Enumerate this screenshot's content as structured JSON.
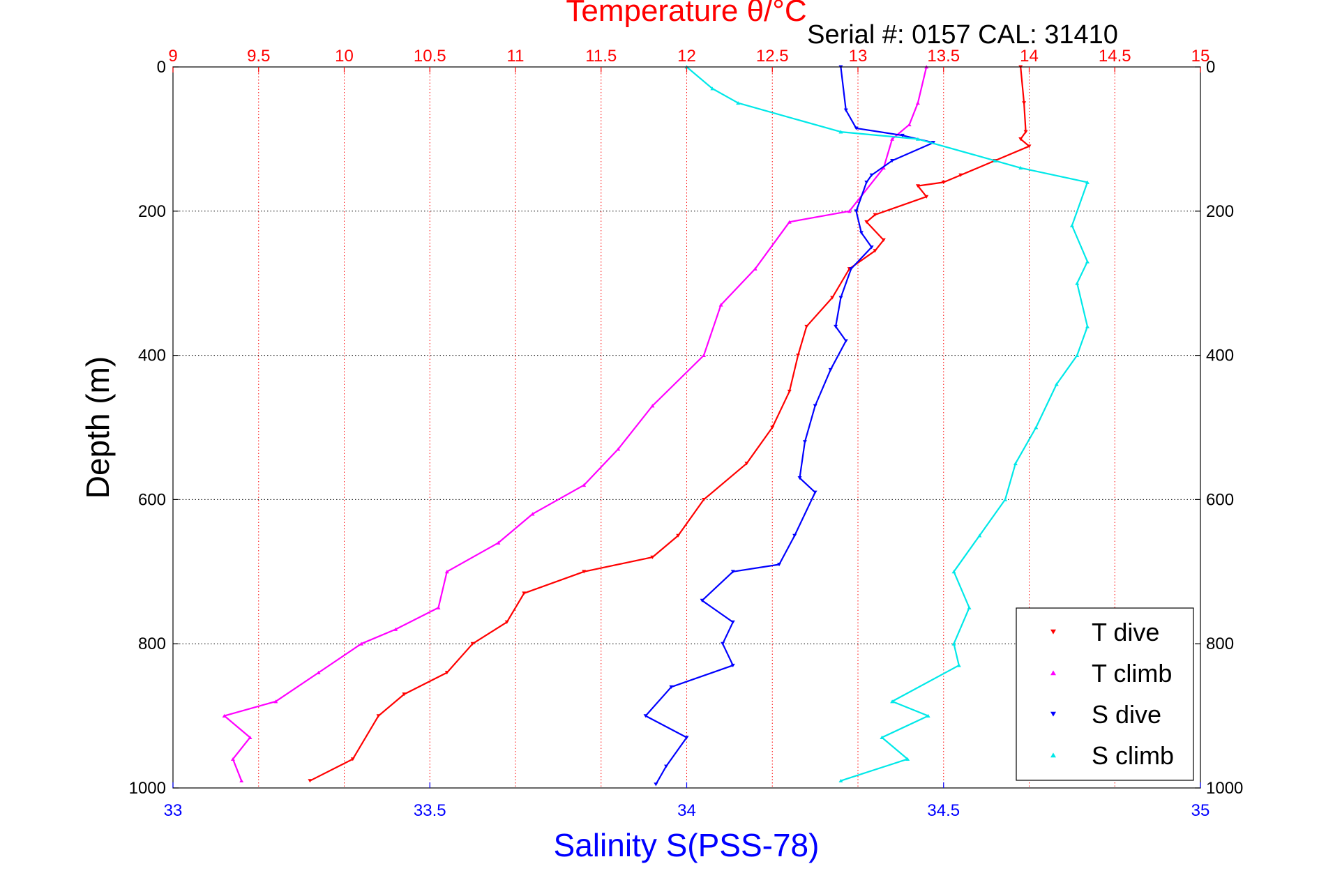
{
  "chart_data": {
    "type": "scatter",
    "title": "Temperature θ/°C",
    "subtitle": "Serial #: 0157  CAL: 31410",
    "xlabel": "Salinity S(PSS-78)",
    "ylabel": "Depth (m)",
    "temp_axis": {
      "label": "Temperature θ/°C",
      "range": [
        9,
        15
      ],
      "ticks": [
        9,
        9.5,
        10,
        10.5,
        11,
        11.5,
        12,
        12.5,
        13,
        13.5,
        14,
        14.5,
        15
      ],
      "tick_labels": [
        "9",
        "9.5",
        "10",
        "10.5",
        "11",
        "11.5",
        "12",
        "12.5",
        "13",
        "13.5",
        "14",
        "14.5",
        "15"
      ],
      "color": "#ff0000"
    },
    "salinity_axis": {
      "label": "Salinity S(PSS-78)",
      "range": [
        33,
        35
      ],
      "ticks": [
        33,
        33.5,
        34,
        34.5,
        35
      ],
      "tick_labels": [
        "33",
        "33.5",
        "34",
        "34.5",
        "35"
      ],
      "color": "#0000ff"
    },
    "depth_axis": {
      "label": "Depth (m)",
      "range": [
        0,
        1000
      ],
      "reversed": true,
      "ticks": [
        0,
        200,
        400,
        600,
        800,
        1000
      ],
      "tick_labels": [
        "0",
        "200",
        "400",
        "600",
        "800",
        "1000"
      ]
    },
    "grid": true,
    "legend": {
      "position": "bottom-right"
    },
    "series": [
      {
        "name": "T dive",
        "axis": "temperature",
        "color": "#ff0000",
        "marker": "triangle-down",
        "points": [
          [
            13.95,
            0
          ],
          [
            13.97,
            50
          ],
          [
            13.98,
            90
          ],
          [
            13.95,
            100
          ],
          [
            14.0,
            110
          ],
          [
            13.8,
            130
          ],
          [
            13.6,
            150
          ],
          [
            13.5,
            160
          ],
          [
            13.35,
            165
          ],
          [
            13.4,
            180
          ],
          [
            13.1,
            205
          ],
          [
            13.05,
            215
          ],
          [
            13.15,
            240
          ],
          [
            13.1,
            255
          ],
          [
            12.95,
            280
          ],
          [
            12.85,
            320
          ],
          [
            12.7,
            360
          ],
          [
            12.65,
            400
          ],
          [
            12.6,
            450
          ],
          [
            12.5,
            500
          ],
          [
            12.35,
            550
          ],
          [
            12.1,
            600
          ],
          [
            11.95,
            650
          ],
          [
            11.8,
            680
          ],
          [
            11.4,
            700
          ],
          [
            11.05,
            730
          ],
          [
            10.95,
            770
          ],
          [
            10.75,
            800
          ],
          [
            10.6,
            840
          ],
          [
            10.35,
            870
          ],
          [
            10.2,
            900
          ],
          [
            10.05,
            960
          ],
          [
            9.8,
            990
          ]
        ]
      },
      {
        "name": "T climb",
        "axis": "temperature",
        "color": "#ff00ff",
        "marker": "triangle-up",
        "points": [
          [
            13.4,
            0
          ],
          [
            13.35,
            50
          ],
          [
            13.3,
            80
          ],
          [
            13.2,
            100
          ],
          [
            13.15,
            140
          ],
          [
            12.95,
            200
          ],
          [
            12.6,
            215
          ],
          [
            12.4,
            280
          ],
          [
            12.2,
            330
          ],
          [
            12.1,
            400
          ],
          [
            11.8,
            470
          ],
          [
            11.6,
            530
          ],
          [
            11.4,
            580
          ],
          [
            11.1,
            620
          ],
          [
            10.9,
            660
          ],
          [
            10.6,
            700
          ],
          [
            10.55,
            750
          ],
          [
            10.3,
            780
          ],
          [
            10.1,
            800
          ],
          [
            9.85,
            840
          ],
          [
            9.6,
            880
          ],
          [
            9.3,
            900
          ],
          [
            9.45,
            930
          ],
          [
            9.35,
            960
          ],
          [
            9.4,
            990
          ]
        ]
      },
      {
        "name": "S dive",
        "axis": "salinity",
        "color": "#0000ff",
        "marker": "triangle-down",
        "points": [
          [
            34.3,
            0
          ],
          [
            34.31,
            60
          ],
          [
            34.33,
            85
          ],
          [
            34.42,
            95
          ],
          [
            34.48,
            105
          ],
          [
            34.4,
            130
          ],
          [
            34.36,
            150
          ],
          [
            34.35,
            160
          ],
          [
            34.33,
            200
          ],
          [
            34.34,
            230
          ],
          [
            34.36,
            250
          ],
          [
            34.32,
            280
          ],
          [
            34.3,
            320
          ],
          [
            34.29,
            360
          ],
          [
            34.31,
            380
          ],
          [
            34.28,
            420
          ],
          [
            34.25,
            470
          ],
          [
            34.23,
            520
          ],
          [
            34.22,
            570
          ],
          [
            34.25,
            590
          ],
          [
            34.21,
            650
          ],
          [
            34.18,
            690
          ],
          [
            34.09,
            700
          ],
          [
            34.03,
            740
          ],
          [
            34.09,
            770
          ],
          [
            34.07,
            800
          ],
          [
            34.09,
            830
          ],
          [
            33.97,
            860
          ],
          [
            33.92,
            900
          ],
          [
            34.0,
            930
          ],
          [
            33.96,
            970
          ],
          [
            33.94,
            995
          ]
        ]
      },
      {
        "name": "S climb",
        "axis": "salinity",
        "color": "#00e8e8",
        "marker": "triangle-up",
        "points": [
          [
            34.0,
            0
          ],
          [
            34.05,
            30
          ],
          [
            34.1,
            50
          ],
          [
            34.3,
            90
          ],
          [
            34.45,
            100
          ],
          [
            34.6,
            130
          ],
          [
            34.65,
            140
          ],
          [
            34.78,
            160
          ],
          [
            34.75,
            220
          ],
          [
            34.78,
            270
          ],
          [
            34.76,
            300
          ],
          [
            34.78,
            360
          ],
          [
            34.76,
            400
          ],
          [
            34.72,
            440
          ],
          [
            34.68,
            500
          ],
          [
            34.64,
            550
          ],
          [
            34.62,
            600
          ],
          [
            34.57,
            650
          ],
          [
            34.52,
            700
          ],
          [
            34.55,
            750
          ],
          [
            34.52,
            800
          ],
          [
            34.53,
            830
          ],
          [
            34.4,
            880
          ],
          [
            34.47,
            900
          ],
          [
            34.38,
            930
          ],
          [
            34.43,
            960
          ],
          [
            34.3,
            990
          ]
        ]
      }
    ]
  }
}
